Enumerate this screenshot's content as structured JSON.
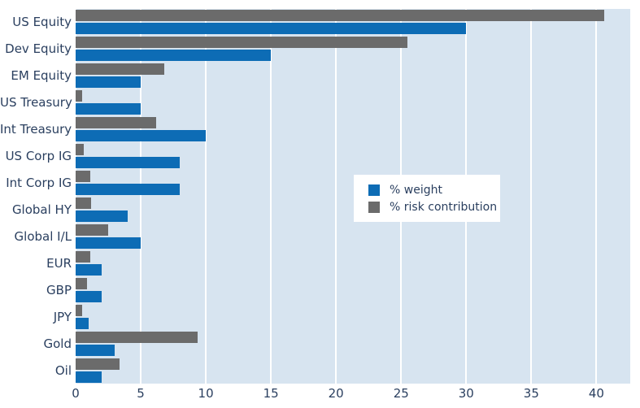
{
  "chart_data": {
    "type": "bar",
    "orientation": "horizontal",
    "title": "",
    "xlabel": "",
    "ylabel": "",
    "categories": [
      "US Equity",
      "Dev Equity",
      "EM Equity",
      "US Treasury",
      "Int Treasury",
      "US Corp IG",
      "Int Corp IG",
      "Global HY",
      "Global I/L",
      "EUR",
      "GBP",
      "JPY",
      "Gold",
      "Oil"
    ],
    "series": [
      {
        "name": "% weight",
        "color": "#0d6cb5",
        "values": [
          30,
          15,
          5,
          5,
          10,
          8,
          8,
          4,
          5,
          2,
          2,
          1,
          3,
          2
        ]
      },
      {
        "name": "% risk contribution",
        "color": "#6b6b6b",
        "values": [
          40.6,
          25.5,
          6.8,
          0.5,
          6.2,
          0.6,
          1.1,
          1.2,
          2.5,
          1.1,
          0.9,
          0.5,
          9.4,
          3.4
        ]
      }
    ],
    "xticks": [
      0,
      5,
      10,
      15,
      20,
      25,
      30,
      35,
      40
    ],
    "xlim": [
      0,
      42.6
    ],
    "grid": "vertical-white-gridlines",
    "legend_position": "middle-right",
    "colors": {
      "plot_background": "#d7e4f0",
      "gridline": "#ffffff",
      "font": "#2a3f5f",
      "legend_background": "#ffffff"
    }
  }
}
